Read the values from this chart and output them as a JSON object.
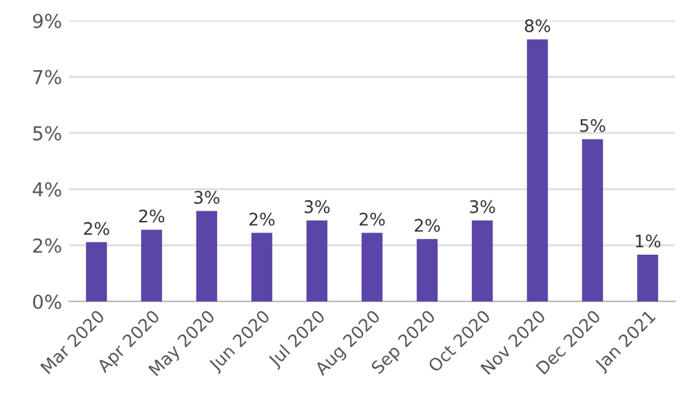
{
  "chart_data": {
    "type": "bar",
    "categories": [
      "Mar 2020",
      "Apr 2020",
      "May 2020",
      "Jun 2020",
      "Jul 2020",
      "Aug 2020",
      "Sep 2020",
      "Oct 2020",
      "Nov 2020",
      "Dec 2020",
      "Jan 2021"
    ],
    "values": [
      1.9,
      2.3,
      2.9,
      2.2,
      2.6,
      2.2,
      2.0,
      2.6,
      8.4,
      5.2,
      1.5
    ],
    "value_labels": [
      "2%",
      "2%",
      "3%",
      "2%",
      "3%",
      "2%",
      "2%",
      "3%",
      "8%",
      "5%",
      "1%"
    ],
    "color": "#5b45a8",
    "ylim": [
      0,
      9
    ],
    "yticks": [
      {
        "value": 0,
        "label": "0%"
      },
      {
        "value": 1.8,
        "label": "2%"
      },
      {
        "value": 3.6,
        "label": "4%"
      },
      {
        "value": 5.4,
        "label": "5%"
      },
      {
        "value": 7.2,
        "label": "7%"
      },
      {
        "value": 9,
        "label": "9%"
      }
    ],
    "grid": "y"
  }
}
